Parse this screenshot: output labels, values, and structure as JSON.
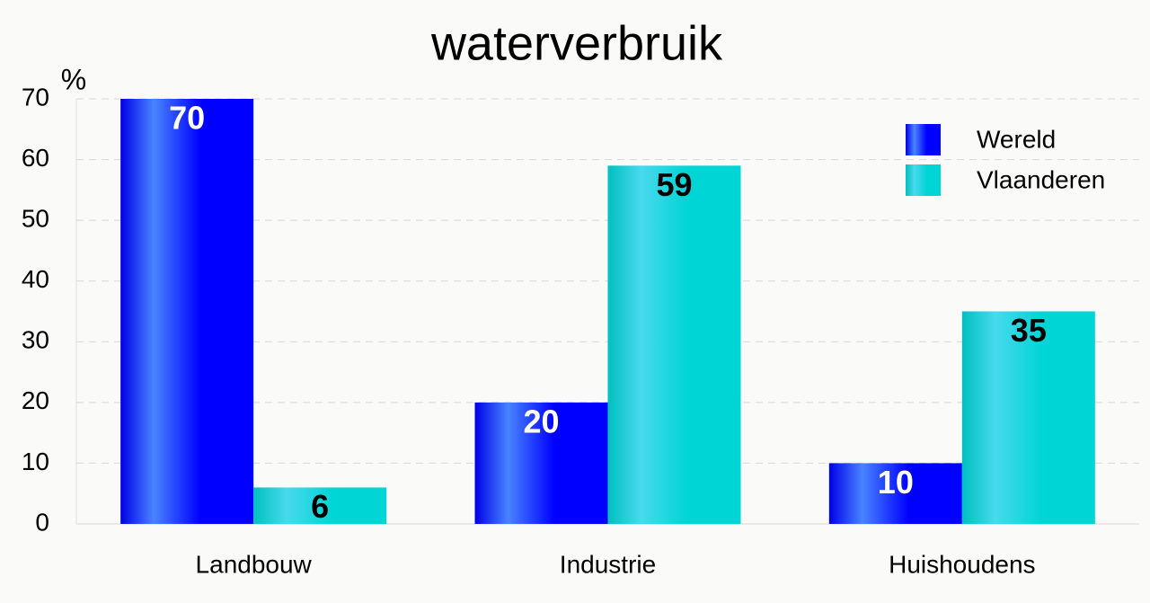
{
  "chart_data": {
    "type": "bar",
    "title": "waterverbruik",
    "y_label": "%",
    "categories": [
      "Landbouw",
      "Industrie",
      "Huishoudens"
    ],
    "series": [
      {
        "name": "Wereld",
        "color": "#0000ff",
        "values": [
          70,
          20,
          10
        ]
      },
      {
        "name": "Vlaanderen",
        "color": "#00d5d5",
        "values": [
          6,
          59,
          35
        ]
      }
    ],
    "ylim": [
      0,
      70
    ],
    "yticks": [
      0,
      10,
      20,
      30,
      40,
      50,
      60,
      70
    ],
    "grid": true,
    "legend": "upper right"
  }
}
